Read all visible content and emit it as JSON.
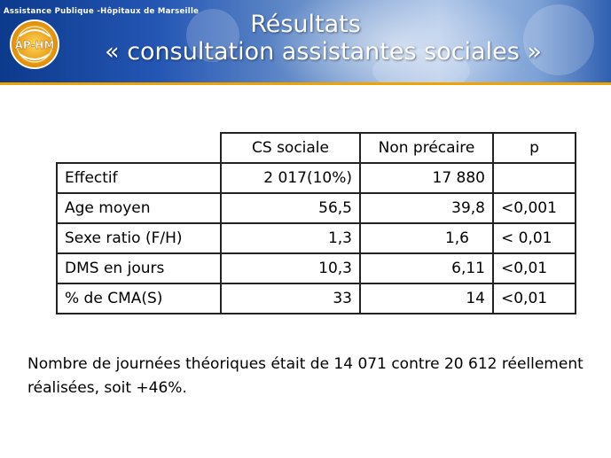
{
  "header": {
    "org_name": "Assistance Publique -Hôpitaux de Marseille",
    "logo_text": "AP-HM",
    "title_line1": "Résultats",
    "title_line2": "« consultation assistantes sociales »",
    "colors": {
      "header_dark": "#0c3a8c",
      "header_light": "#a8c1e6",
      "stripe": "#f0a300"
    }
  },
  "table": {
    "headers": [
      "CS sociale",
      "Non précaire",
      "p"
    ],
    "rows": [
      {
        "label": "Effectif",
        "cs": "2 017(10%)",
        "np": "17 880",
        "p": ""
      },
      {
        "label": "Age moyen",
        "cs": "56,5",
        "np": "39,8",
        "p": "<0,001"
      },
      {
        "label": "Sexe ratio (F/H)",
        "cs": "1,3",
        "np": "1,6",
        "p": "< 0,01"
      },
      {
        "label": "DMS en jours",
        "cs": "10,3",
        "np": "6,11",
        "p": "<0,01"
      },
      {
        "label": "% de CMA(S)",
        "cs": "33",
        "np": "14",
        "p": "<0,01"
      }
    ]
  },
  "footnote": "Nombre de journées théoriques était de 14 071 contre 20 612 réellement réalisées, soit +46%."
}
